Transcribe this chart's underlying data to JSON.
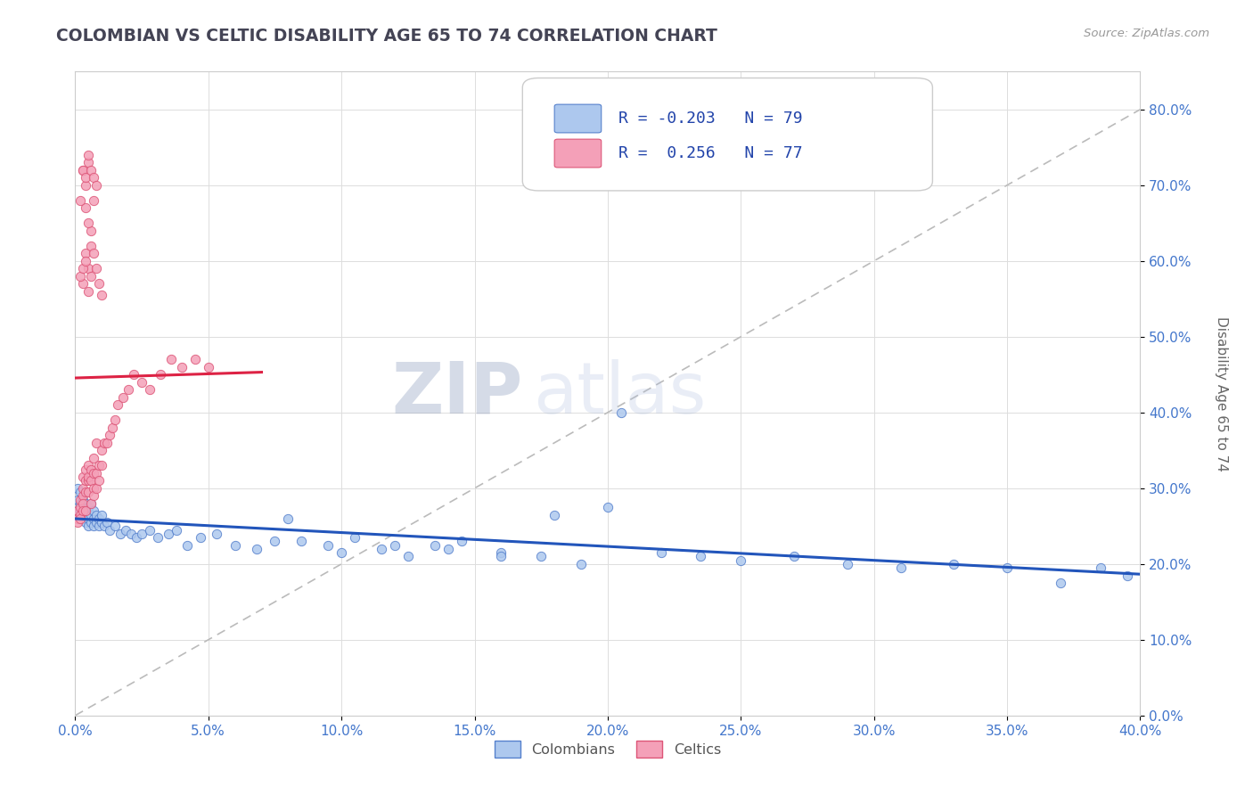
{
  "title": "COLOMBIAN VS CELTIC DISABILITY AGE 65 TO 74 CORRELATION CHART",
  "source": "Source: ZipAtlas.com",
  "ylabel": "Disability Age 65 to 74",
  "xlim": [
    0.0,
    0.4
  ],
  "ylim": [
    0.0,
    0.85
  ],
  "xticks": [
    0.0,
    0.05,
    0.1,
    0.15,
    0.2,
    0.25,
    0.3,
    0.35,
    0.4
  ],
  "yticks": [
    0.0,
    0.1,
    0.2,
    0.3,
    0.4,
    0.5,
    0.6,
    0.7,
    0.8
  ],
  "colombian_color": "#adc8ee",
  "celtic_color": "#f4a0b8",
  "colombian_edge": "#5580cc",
  "celtic_edge": "#dd5577",
  "trend_colombian_color": "#2255bb",
  "trend_celtic_color": "#dd2244",
  "r_colombian": -0.203,
  "n_colombian": 79,
  "r_celtic": 0.256,
  "n_celtic": 77,
  "legend_colombians": "Colombians",
  "legend_celtics": "Celtics",
  "watermark_zip": "ZIP",
  "watermark_atlas": "atlas",
  "colombian_x": [
    0.001,
    0.001,
    0.001,
    0.002,
    0.002,
    0.002,
    0.002,
    0.003,
    0.003,
    0.003,
    0.003,
    0.004,
    0.004,
    0.004,
    0.004,
    0.005,
    0.005,
    0.005,
    0.005,
    0.006,
    0.006,
    0.006,
    0.007,
    0.007,
    0.007,
    0.008,
    0.008,
    0.009,
    0.009,
    0.01,
    0.01,
    0.011,
    0.012,
    0.013,
    0.015,
    0.017,
    0.019,
    0.021,
    0.023,
    0.025,
    0.028,
    0.031,
    0.035,
    0.038,
    0.042,
    0.047,
    0.053,
    0.06,
    0.068,
    0.075,
    0.085,
    0.095,
    0.105,
    0.115,
    0.125,
    0.135,
    0.145,
    0.16,
    0.175,
    0.19,
    0.205,
    0.22,
    0.235,
    0.25,
    0.27,
    0.29,
    0.31,
    0.33,
    0.35,
    0.37,
    0.385,
    0.395,
    0.2,
    0.18,
    0.16,
    0.14,
    0.12,
    0.1,
    0.08
  ],
  "colombian_y": [
    0.285,
    0.27,
    0.3,
    0.26,
    0.28,
    0.295,
    0.27,
    0.265,
    0.275,
    0.285,
    0.26,
    0.27,
    0.28,
    0.255,
    0.265,
    0.27,
    0.26,
    0.25,
    0.275,
    0.265,
    0.255,
    0.28,
    0.26,
    0.25,
    0.27,
    0.255,
    0.265,
    0.25,
    0.26,
    0.255,
    0.265,
    0.25,
    0.255,
    0.245,
    0.25,
    0.24,
    0.245,
    0.24,
    0.235,
    0.24,
    0.245,
    0.235,
    0.24,
    0.245,
    0.225,
    0.235,
    0.24,
    0.225,
    0.22,
    0.23,
    0.23,
    0.225,
    0.235,
    0.22,
    0.21,
    0.225,
    0.23,
    0.215,
    0.21,
    0.2,
    0.4,
    0.215,
    0.21,
    0.205,
    0.21,
    0.2,
    0.195,
    0.2,
    0.195,
    0.175,
    0.195,
    0.185,
    0.275,
    0.265,
    0.21,
    0.22,
    0.225,
    0.215,
    0.26
  ],
  "celtic_x": [
    0.001,
    0.001,
    0.001,
    0.002,
    0.002,
    0.002,
    0.002,
    0.003,
    0.003,
    0.003,
    0.003,
    0.003,
    0.004,
    0.004,
    0.004,
    0.004,
    0.005,
    0.005,
    0.005,
    0.005,
    0.006,
    0.006,
    0.006,
    0.007,
    0.007,
    0.007,
    0.007,
    0.008,
    0.008,
    0.008,
    0.009,
    0.009,
    0.01,
    0.01,
    0.011,
    0.012,
    0.013,
    0.014,
    0.015,
    0.016,
    0.018,
    0.02,
    0.022,
    0.025,
    0.028,
    0.032,
    0.036,
    0.04,
    0.045,
    0.05,
    0.003,
    0.004,
    0.005,
    0.006,
    0.004,
    0.005,
    0.006,
    0.007,
    0.003,
    0.004,
    0.005,
    0.002,
    0.003,
    0.004,
    0.005,
    0.006,
    0.007,
    0.008,
    0.002,
    0.003,
    0.004,
    0.005,
    0.006,
    0.007,
    0.008,
    0.009,
    0.01
  ],
  "celtic_y": [
    0.27,
    0.26,
    0.255,
    0.275,
    0.265,
    0.285,
    0.26,
    0.29,
    0.28,
    0.3,
    0.315,
    0.27,
    0.31,
    0.325,
    0.295,
    0.27,
    0.31,
    0.33,
    0.295,
    0.315,
    0.325,
    0.31,
    0.28,
    0.32,
    0.3,
    0.29,
    0.34,
    0.3,
    0.32,
    0.36,
    0.33,
    0.31,
    0.35,
    0.33,
    0.36,
    0.36,
    0.37,
    0.38,
    0.39,
    0.41,
    0.42,
    0.43,
    0.45,
    0.44,
    0.43,
    0.45,
    0.47,
    0.46,
    0.47,
    0.46,
    0.57,
    0.61,
    0.59,
    0.64,
    0.67,
    0.65,
    0.62,
    0.68,
    0.72,
    0.7,
    0.73,
    0.68,
    0.72,
    0.71,
    0.74,
    0.72,
    0.71,
    0.7,
    0.58,
    0.59,
    0.6,
    0.56,
    0.58,
    0.61,
    0.59,
    0.57,
    0.555
  ]
}
